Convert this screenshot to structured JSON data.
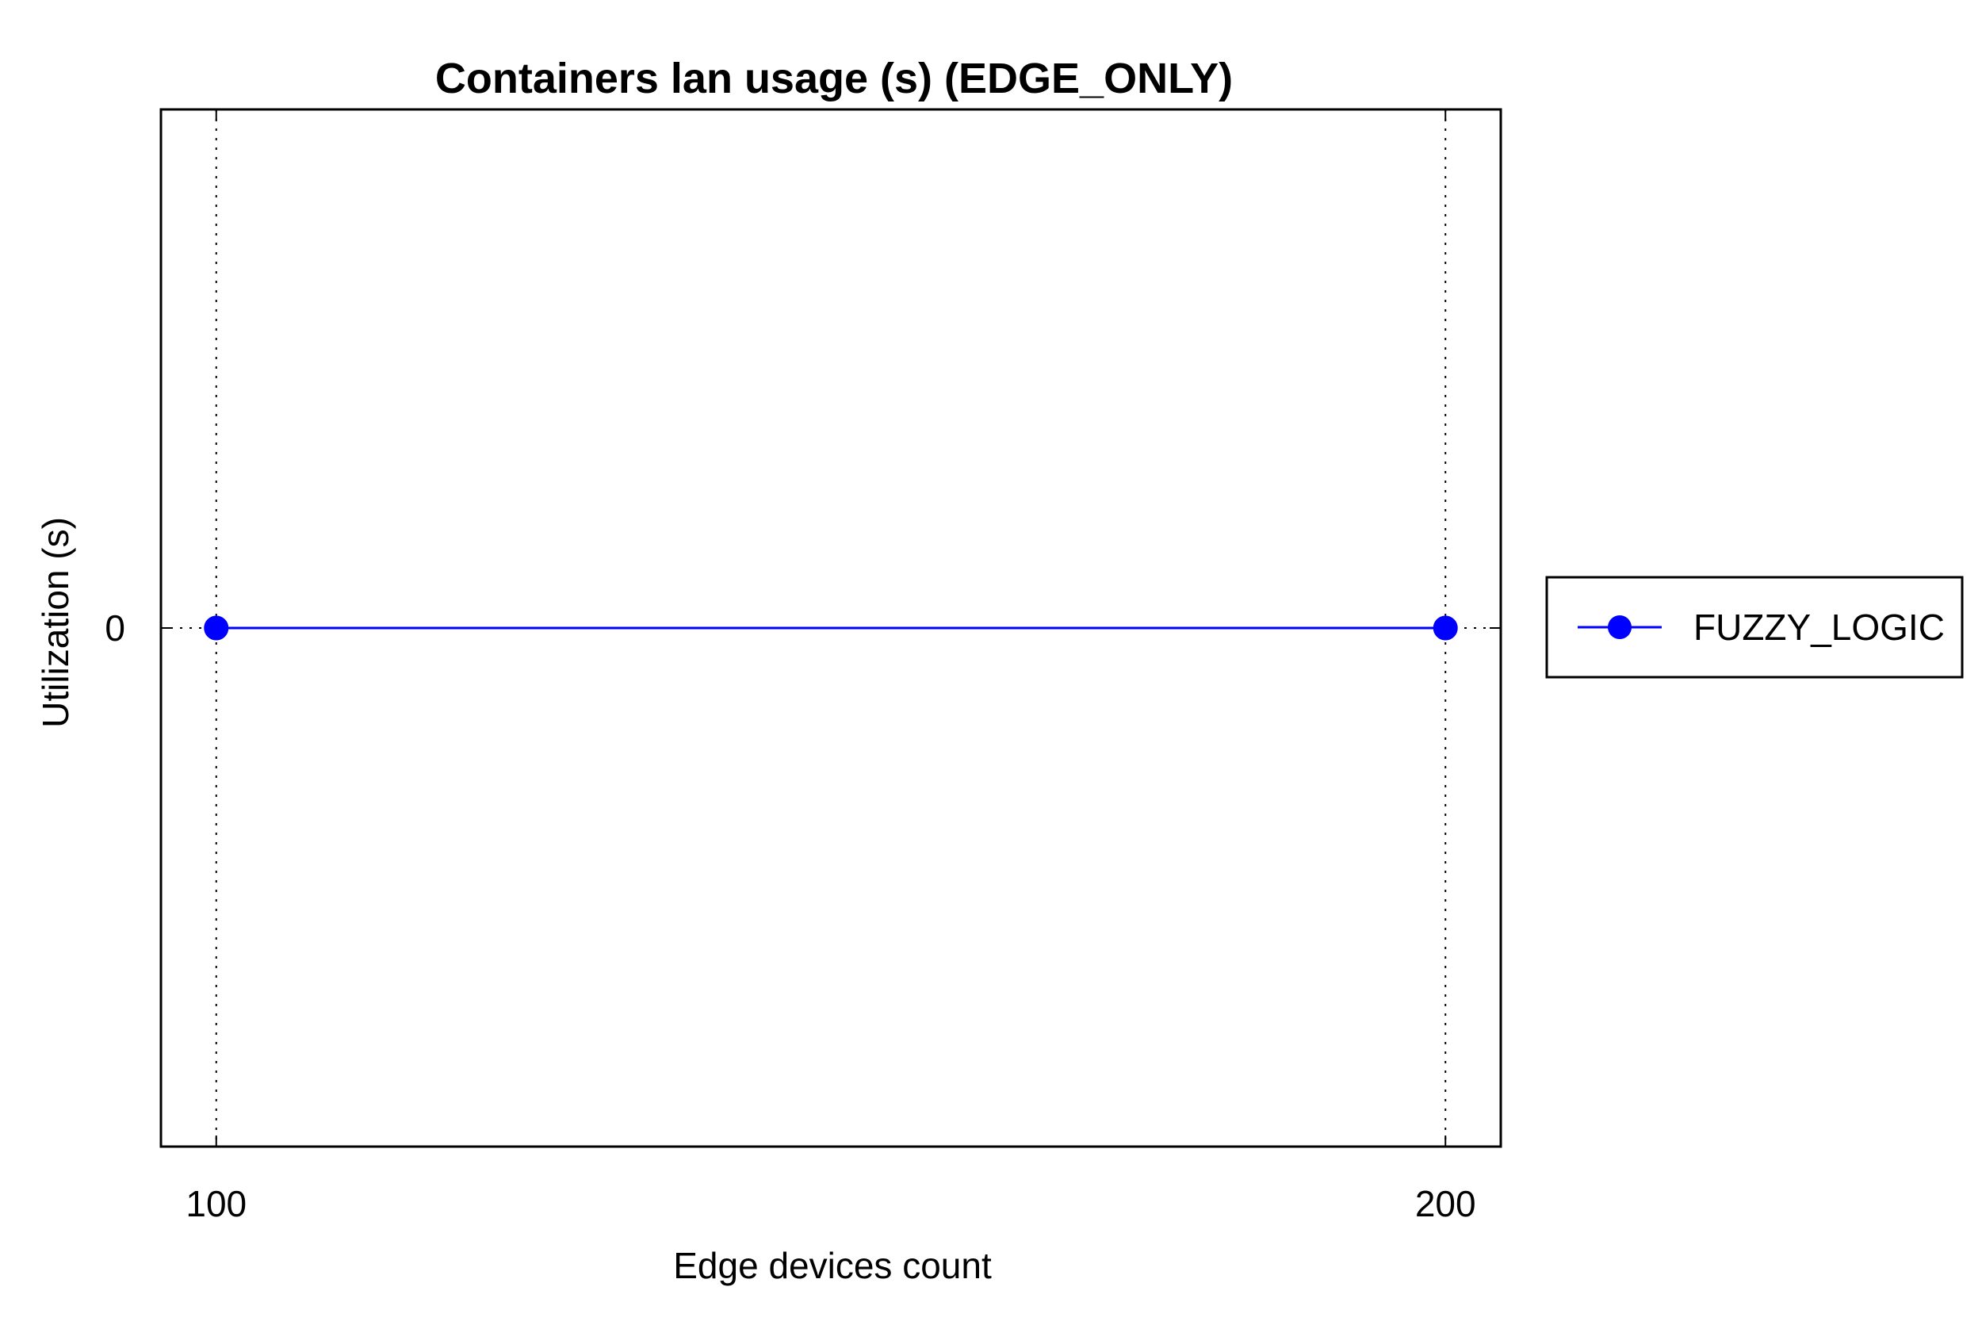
{
  "chart_data": {
    "type": "line",
    "title": "Containers lan usage (s) (EDGE_ONLY)",
    "xlabel": "Edge devices count",
    "ylabel": "Utilization (s)",
    "x": [
      100,
      200
    ],
    "x_ticks": [
      "100",
      "200"
    ],
    "y_ticks": [
      "0"
    ],
    "xlim": [
      95.5,
      204.5
    ],
    "ylim": [
      -1,
      1
    ],
    "grid": true,
    "legend_position": "right",
    "series": [
      {
        "name": "FUZZY_LOGIC",
        "values": [
          0,
          0
        ],
        "color": "#0000ff",
        "marker": "circle"
      }
    ]
  }
}
